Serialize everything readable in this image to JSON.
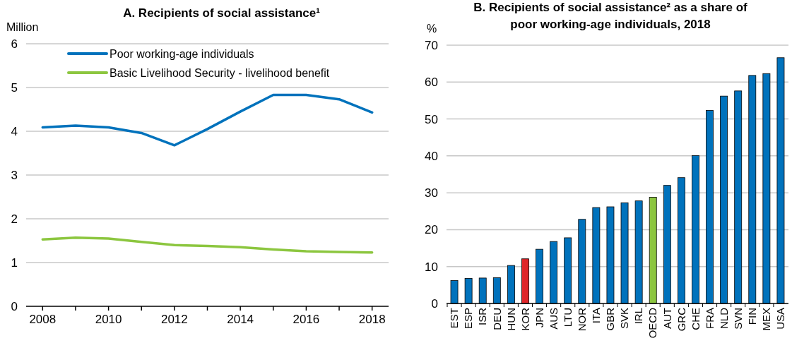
{
  "chart_data": [
    {
      "type": "line",
      "title": "A. Recipients of social assistance¹",
      "ylabel": "Million",
      "x": [
        2008,
        2009,
        2010,
        2011,
        2012,
        2013,
        2014,
        2015,
        2016,
        2017,
        2018
      ],
      "xlim": [
        2007.5,
        2018.5
      ],
      "xticks": [
        2008,
        {
          "value": 2009,
          "label": null
        },
        2010,
        {
          "value": 2011,
          "label": null
        },
        2012,
        {
          "value": 2013,
          "label": null
        },
        2014,
        {
          "value": 2015,
          "label": null
        },
        2016,
        {
          "value": 2017,
          "label": null
        },
        2018
      ],
      "ylim": [
        0,
        6
      ],
      "yticks": [
        0,
        1,
        2,
        3,
        4,
        5,
        6
      ],
      "grid": "y",
      "legend": "top left",
      "series": [
        {
          "name": "Poor working-age individuals",
          "color": "#0072bc",
          "values": [
            4.09,
            4.13,
            4.09,
            3.96,
            3.68,
            4.05,
            4.45,
            4.83,
            4.83,
            4.73,
            4.43
          ]
        },
        {
          "name": "Basic Livelihood Security - livelihood benefit",
          "color": "#8cc63f",
          "values": [
            1.53,
            1.57,
            1.55,
            1.47,
            1.4,
            1.38,
            1.35,
            1.3,
            1.26,
            1.24,
            1.23
          ]
        }
      ]
    },
    {
      "type": "bar",
      "title": "B. Recipients of social assistance² as a share of poor working-age individuals, 2018",
      "ylabel": "%",
      "categories": [
        "EST",
        "ESP",
        "ISR",
        "DEU",
        "HUN",
        "KOR",
        "JPN",
        "AUS",
        "LTU",
        "NOR",
        "ITA",
        "GBR",
        "SVK",
        "IRL",
        "OECD",
        "AUT",
        "GRC",
        "CHE",
        "FRA",
        "NLD",
        "SVN",
        "FIN",
        "MEX",
        "USA"
      ],
      "values": [
        6.2,
        6.8,
        6.9,
        7.0,
        10.3,
        12.1,
        14.7,
        16.8,
        17.8,
        22.8,
        26.0,
        26.2,
        27.3,
        27.8,
        28.8,
        32.0,
        34.1,
        40.1,
        52.3,
        56.2,
        57.6,
        61.8,
        62.3,
        66.6
      ],
      "colors": [
        "#0072bc",
        "#0072bc",
        "#0072bc",
        "#0072bc",
        "#0072bc",
        "#e0262a",
        "#0072bc",
        "#0072bc",
        "#0072bc",
        "#0072bc",
        "#0072bc",
        "#0072bc",
        "#0072bc",
        "#0072bc",
        "#8cc63f",
        "#0072bc",
        "#0072bc",
        "#0072bc",
        "#0072bc",
        "#0072bc",
        "#0072bc",
        "#0072bc",
        "#0072bc",
        "#0072bc"
      ],
      "ylim": [
        0,
        70
      ],
      "yticks": [
        0,
        10,
        20,
        30,
        40,
        50,
        60,
        70
      ],
      "grid": "y"
    }
  ]
}
